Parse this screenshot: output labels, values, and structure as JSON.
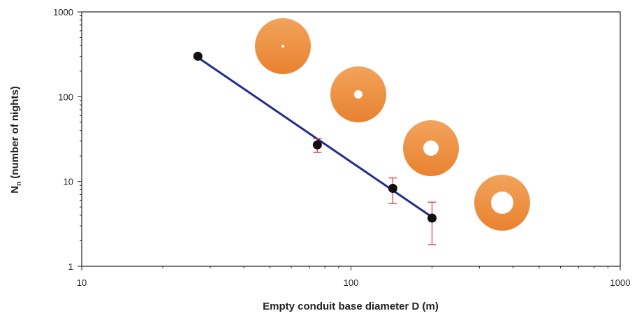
{
  "chart_data": {
    "type": "scatter",
    "xlabel": "Empty conduit base diameter D (m)",
    "ylabel": [
      "N",
      "n",
      " (number of nights)"
    ],
    "xscale": "log",
    "yscale": "log",
    "xlim": [
      10,
      1000
    ],
    "ylim": [
      1,
      1000
    ],
    "xticks": [
      10,
      100,
      1000
    ],
    "yticks": [
      1,
      10,
      100,
      1000
    ],
    "xminorticks": [
      20,
      30,
      40,
      50,
      60,
      70,
      80,
      90,
      200,
      300,
      400,
      500,
      600,
      700,
      800,
      900
    ],
    "yminorticks": [
      2,
      3,
      4,
      5,
      6,
      7,
      8,
      9,
      20,
      30,
      40,
      50,
      60,
      70,
      80,
      90,
      200,
      300,
      400,
      500,
      600,
      700,
      800,
      900
    ],
    "x": [
      27,
      75,
      143,
      200
    ],
    "values": [
      300,
      27,
      8.3,
      3.7
    ],
    "color": "#111111",
    "yerr_low": [
      null,
      22,
      5.5,
      1.8
    ],
    "yerr_high": [
      null,
      32,
      11,
      5.7
    ],
    "error_color": "#e8313a",
    "fit": {
      "x": [
        27,
        200
      ],
      "values": [
        290,
        3.8
      ],
      "color": "#232b8f"
    }
  }
}
